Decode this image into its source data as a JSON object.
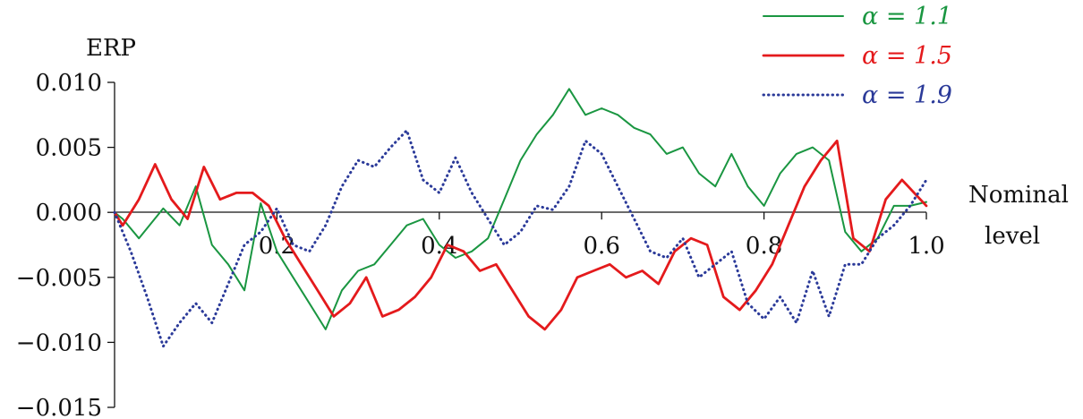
{
  "chart_data": {
    "type": "line",
    "ylabel": "ERP",
    "xlabel": "Nominal\nlevel",
    "xlim": [
      0,
      1
    ],
    "ylim": [
      -0.015,
      0.01
    ],
    "x_ticks": [
      0.2,
      0.4,
      0.6,
      0.8,
      1.0
    ],
    "x_tick_labels": [
      "0.2",
      "0.4",
      "0.6",
      "0.8",
      "1.0"
    ],
    "y_ticks": [
      0.01,
      0.005,
      0.0,
      -0.005,
      -0.01,
      -0.015
    ],
    "y_tick_labels": [
      "0.010",
      "0.005",
      "0.000",
      "−0.005",
      "−0.010",
      "−0.015"
    ],
    "grid": false,
    "legend_position": "top-right",
    "series": [
      {
        "name": "α = 1.1",
        "color": "#1a9641",
        "style": "solid",
        "x": [
          0.0,
          0.01,
          0.03,
          0.06,
          0.08,
          0.1,
          0.12,
          0.14,
          0.16,
          0.18,
          0.2,
          0.22,
          0.24,
          0.26,
          0.28,
          0.3,
          0.32,
          0.34,
          0.36,
          0.38,
          0.4,
          0.42,
          0.44,
          0.46,
          0.48,
          0.5,
          0.52,
          0.54,
          0.56,
          0.58,
          0.6,
          0.62,
          0.64,
          0.66,
          0.68,
          0.7,
          0.72,
          0.74,
          0.76,
          0.78,
          0.8,
          0.82,
          0.84,
          0.86,
          0.88,
          0.9,
          0.92,
          0.94,
          0.96,
          0.98,
          1.0
        ],
        "values": [
          0.0,
          -0.0005,
          -0.002,
          0.0003,
          -0.001,
          0.002,
          -0.0025,
          -0.004,
          -0.006,
          0.0007,
          -0.003,
          -0.005,
          -0.007,
          -0.009,
          -0.006,
          -0.0045,
          -0.004,
          -0.0025,
          -0.001,
          -0.0005,
          -0.0025,
          -0.0035,
          -0.003,
          -0.002,
          0.001,
          0.004,
          0.006,
          0.0075,
          0.0095,
          0.0075,
          0.008,
          0.0075,
          0.0065,
          0.006,
          0.0045,
          0.005,
          0.003,
          0.002,
          0.0045,
          0.002,
          0.0005,
          0.003,
          0.0045,
          0.005,
          0.004,
          -0.0015,
          -0.003,
          -0.002,
          0.0005,
          0.0005,
          0.0008
        ]
      },
      {
        "name": "α = 1.5",
        "color": "#e41a1c",
        "style": "solid",
        "x": [
          0.0,
          0.01,
          0.03,
          0.05,
          0.07,
          0.09,
          0.11,
          0.13,
          0.15,
          0.17,
          0.19,
          0.21,
          0.23,
          0.25,
          0.27,
          0.29,
          0.31,
          0.33,
          0.35,
          0.37,
          0.39,
          0.41,
          0.43,
          0.45,
          0.47,
          0.49,
          0.51,
          0.53,
          0.55,
          0.57,
          0.59,
          0.61,
          0.63,
          0.65,
          0.67,
          0.69,
          0.71,
          0.73,
          0.75,
          0.77,
          0.79,
          0.81,
          0.83,
          0.85,
          0.87,
          0.89,
          0.91,
          0.93,
          0.95,
          0.97,
          1.0
        ],
        "values": [
          0.0,
          -0.001,
          0.001,
          0.0037,
          0.001,
          -0.0005,
          0.0035,
          0.001,
          0.0015,
          0.0015,
          0.0005,
          -0.002,
          -0.004,
          -0.006,
          -0.008,
          -0.007,
          -0.005,
          -0.008,
          -0.0075,
          -0.0065,
          -0.005,
          -0.0025,
          -0.003,
          -0.0045,
          -0.004,
          -0.006,
          -0.008,
          -0.009,
          -0.0075,
          -0.005,
          -0.0045,
          -0.004,
          -0.005,
          -0.0045,
          -0.0055,
          -0.003,
          -0.002,
          -0.0025,
          -0.0065,
          -0.0075,
          -0.006,
          -0.004,
          -0.001,
          0.002,
          0.004,
          0.0055,
          -0.002,
          -0.003,
          0.001,
          0.0025,
          0.0005
        ]
      },
      {
        "name": "α = 1.9",
        "color": "#2b3a99",
        "style": "dotted",
        "x": [
          0.0,
          0.02,
          0.04,
          0.06,
          0.08,
          0.1,
          0.12,
          0.14,
          0.16,
          0.18,
          0.2,
          0.22,
          0.24,
          0.26,
          0.28,
          0.3,
          0.32,
          0.34,
          0.36,
          0.38,
          0.4,
          0.42,
          0.44,
          0.46,
          0.48,
          0.5,
          0.52,
          0.54,
          0.56,
          0.58,
          0.6,
          0.62,
          0.64,
          0.66,
          0.68,
          0.7,
          0.72,
          0.74,
          0.76,
          0.78,
          0.8,
          0.82,
          0.84,
          0.86,
          0.88,
          0.9,
          0.92,
          0.94,
          0.96,
          0.98,
          1.0
        ],
        "values": [
          0.0,
          -0.003,
          -0.0065,
          -0.0103,
          -0.0085,
          -0.007,
          -0.0085,
          -0.0055,
          -0.0025,
          -0.0015,
          0.0003,
          -0.0025,
          -0.003,
          -0.001,
          0.002,
          0.004,
          0.0035,
          0.005,
          0.0063,
          0.0025,
          0.0015,
          0.0042,
          0.0015,
          -0.0005,
          -0.0025,
          -0.0015,
          0.0005,
          0.0002,
          0.002,
          0.0055,
          0.0045,
          0.002,
          -0.0005,
          -0.003,
          -0.0035,
          -0.002,
          -0.005,
          -0.004,
          -0.003,
          -0.007,
          -0.0082,
          -0.0065,
          -0.0085,
          -0.0045,
          -0.008,
          -0.004,
          -0.004,
          -0.002,
          -0.001,
          0.0005,
          0.0025
        ]
      }
    ]
  }
}
